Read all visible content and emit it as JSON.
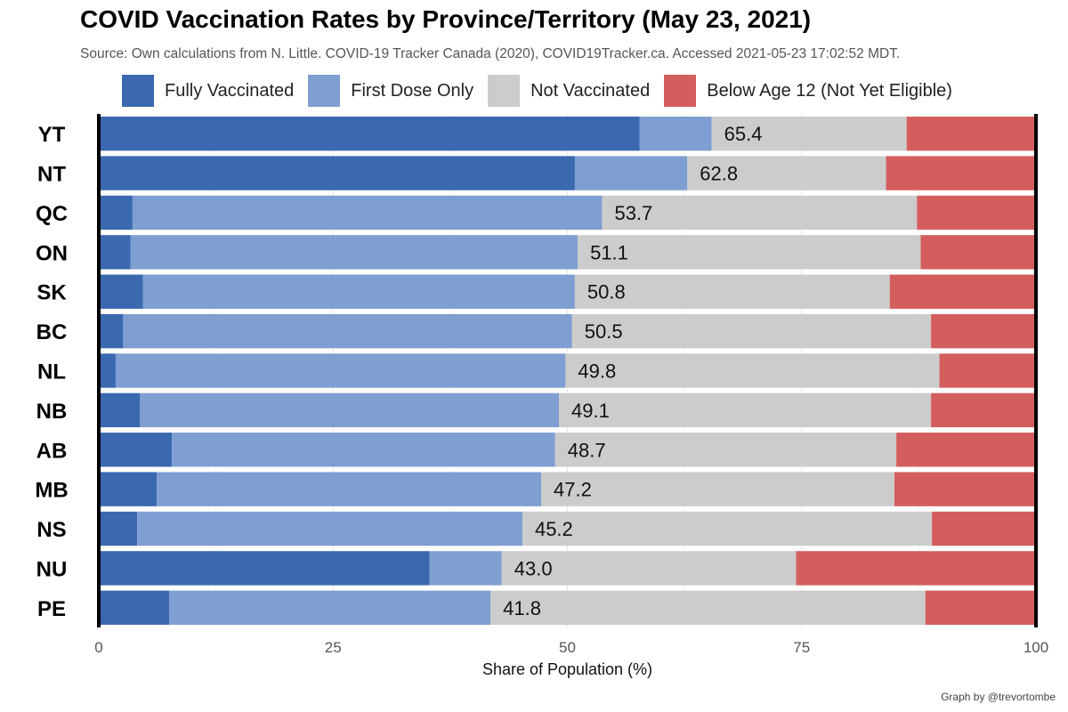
{
  "title": "COVID Vaccination Rates by Province/Territory (May 23, 2021)",
  "subtitle": "Source: Own calculations from N. Little. COVID-19 Tracker Canada (2020), COVID19Tracker.ca. Accessed 2021-05-23 17:02:52 MDT.",
  "caption": "Graph by @trevortombe",
  "chart_data": {
    "type": "bar",
    "orientation": "horizontal",
    "stacked": true,
    "title": "COVID Vaccination Rates by Province/Territory (May 23, 2021)",
    "xlabel": "Share of Population (%)",
    "ylabel": "",
    "xlim": [
      0,
      100
    ],
    "x_ticks": [
      "0",
      "25",
      "50",
      "75",
      "100"
    ],
    "legend_position": "top",
    "categories": [
      "YT",
      "NT",
      "QC",
      "ON",
      "SK",
      "BC",
      "NL",
      "NB",
      "AB",
      "MB",
      "NS",
      "NU",
      "PE"
    ],
    "series": [
      {
        "name": "Fully Vaccinated",
        "color": "#3a69b0",
        "values": [
          57.7,
          50.8,
          3.6,
          3.4,
          4.7,
          2.6,
          1.8,
          4.4,
          7.8,
          6.2,
          4.1,
          35.3,
          7.5
        ]
      },
      {
        "name": "First Dose Only",
        "color": "#7f9ed1",
        "values": [
          7.7,
          12.0,
          50.1,
          47.7,
          46.1,
          47.9,
          48.0,
          44.7,
          40.9,
          41.0,
          41.1,
          7.7,
          34.3
        ]
      },
      {
        "name": "Not Vaccinated",
        "color": "#cccccc",
        "values": [
          20.8,
          21.2,
          33.6,
          36.6,
          33.6,
          38.3,
          39.9,
          39.7,
          36.4,
          37.7,
          43.7,
          31.4,
          46.4
        ]
      },
      {
        "name": "Below Age 12 (Not Yet Eligible)",
        "color": "#d45e5e",
        "values": [
          13.8,
          16.0,
          12.7,
          12.3,
          15.6,
          11.2,
          10.3,
          11.2,
          14.9,
          15.1,
          11.1,
          25.6,
          11.8
        ]
      }
    ],
    "data_labels": [
      "65.4",
      "62.8",
      "53.7",
      "51.1",
      "50.8",
      "50.5",
      "49.8",
      "49.1",
      "48.7",
      "47.2",
      "45.2",
      "43.0",
      "41.8"
    ]
  }
}
